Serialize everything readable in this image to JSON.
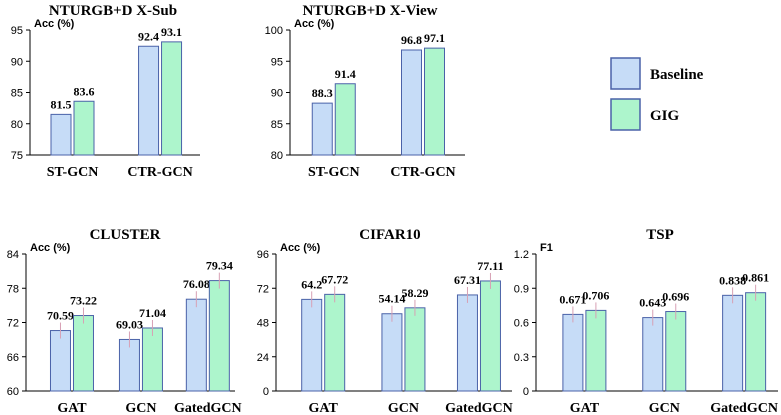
{
  "colors": {
    "baseline_fill": "#c6dcf7",
    "baseline_stroke": "#4a62a8",
    "gig_fill": "#adf5cc",
    "gig_stroke": "#4a62a8",
    "errorbar": "#d7a0b4",
    "axis": "#000000"
  },
  "legend": {
    "entries": [
      {
        "name": "Baseline",
        "color_key": "baseline"
      },
      {
        "name": "GIG",
        "color_key": "gig"
      }
    ]
  },
  "chart_data": [
    {
      "type": "bar",
      "title": "NTURGB+D X-Sub",
      "ylabel": "Acc (%)",
      "ylim": [
        75,
        95
      ],
      "yticks": [
        75,
        80,
        85,
        90,
        95
      ],
      "categories": [
        "ST-GCN",
        "CTR-GCN"
      ],
      "series": [
        {
          "name": "Baseline",
          "values": [
            81.5,
            92.4
          ],
          "labels": [
            "81.5",
            "92.4"
          ]
        },
        {
          "name": "GIG",
          "values": [
            83.6,
            93.1
          ],
          "labels": [
            "83.6",
            "93.1"
          ]
        }
      ],
      "error_bars": false
    },
    {
      "type": "bar",
      "title": "NTURGB+D X-View",
      "ylabel": "Acc (%)",
      "ylim": [
        80,
        100
      ],
      "yticks": [
        80,
        85,
        90,
        95,
        100
      ],
      "categories": [
        "ST-GCN",
        "CTR-GCN"
      ],
      "series": [
        {
          "name": "Baseline",
          "values": [
            88.3,
            96.8
          ],
          "labels": [
            "88.3",
            "96.8"
          ]
        },
        {
          "name": "GIG",
          "values": [
            91.4,
            97.1
          ],
          "labels": [
            "91.4",
            "97.1"
          ]
        }
      ],
      "error_bars": false
    },
    {
      "type": "bar",
      "title": "CLUSTER",
      "ylabel": "Acc (%)",
      "ylim": [
        60,
        84
      ],
      "yticks": [
        60,
        66,
        72,
        78,
        84
      ],
      "categories": [
        "GAT",
        "GCN",
        "GatedGCN"
      ],
      "series": [
        {
          "name": "Baseline",
          "values": [
            70.59,
            69.03,
            76.08
          ],
          "labels": [
            "70.59",
            "69.03",
            "76.08"
          ]
        },
        {
          "name": "GIG",
          "values": [
            73.22,
            71.04,
            79.34
          ],
          "labels": [
            "73.22",
            "71.04",
            "79.34"
          ]
        }
      ],
      "error_bars": true
    },
    {
      "type": "bar",
      "title": "CIFAR10",
      "ylabel": "Acc (%)",
      "ylim": [
        0,
        96
      ],
      "yticks": [
        0,
        24,
        48,
        72,
        96
      ],
      "categories": [
        "GAT",
        "GCN",
        "GatedGCN"
      ],
      "series": [
        {
          "name": "Baseline",
          "values": [
            64.2,
            54.14,
            67.31
          ],
          "labels": [
            "64.2",
            "54.14",
            "67.31"
          ]
        },
        {
          "name": "GIG",
          "values": [
            67.72,
            58.29,
            77.11
          ],
          "labels": [
            "67.72",
            "58.29",
            "77.11"
          ]
        }
      ],
      "error_bars": true
    },
    {
      "type": "bar",
      "title": "TSP",
      "ylabel": "F1",
      "ylim": [
        0,
        1.2
      ],
      "yticks": [
        0,
        0.3,
        0.6,
        0.9,
        1.2
      ],
      "categories": [
        "GAT",
        "GCN",
        "GatedGCN"
      ],
      "series": [
        {
          "name": "Baseline",
          "values": [
            0.671,
            0.643,
            0.838
          ],
          "labels": [
            "0.671",
            "0.643",
            "0.838"
          ]
        },
        {
          "name": "GIG",
          "values": [
            0.706,
            0.696,
            0.861
          ],
          "labels": [
            "0.706",
            "0.696",
            "0.861"
          ]
        }
      ],
      "error_bars": true
    }
  ]
}
